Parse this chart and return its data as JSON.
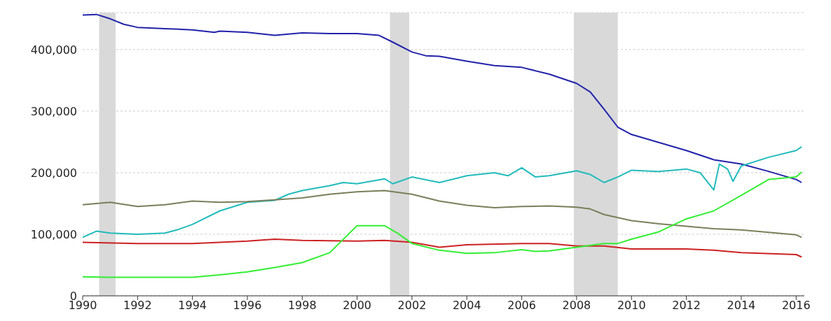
{
  "chart_data": {
    "type": "line",
    "grid": "y",
    "xlim": [
      1990,
      2016.3
    ],
    "xticks": [
      1990,
      1992,
      1994,
      1996,
      1998,
      2000,
      2002,
      2004,
      2006,
      2008,
      2010,
      2012,
      2014,
      2016
    ],
    "ylim": [
      0,
      460000
    ],
    "yticks": [
      0,
      {
        "value": 100000,
        "label": "100,000"
      },
      {
        "value": 200000,
        "label": "200,000"
      },
      {
        "value": 300000,
        "label": "300,000"
      },
      {
        "value": 400000,
        "label": "400,000"
      }
    ],
    "bands": [
      {
        "axis": "x",
        "from": 1990.6,
        "to": 1991.2,
        "color": "#d9d9d9"
      },
      {
        "axis": "x",
        "from": 2001.2,
        "to": 2001.9,
        "color": "#d9d9d9"
      },
      {
        "axis": "x",
        "from": 2007.9,
        "to": 2009.5,
        "color": "#d9d9d9"
      }
    ],
    "series": [
      {
        "color": "#2222aa",
        "x": [
          1990,
          1990.5,
          1991,
          1991.5,
          1992,
          1993,
          1994,
          1994.8,
          1995,
          1996,
          1997,
          1998,
          1999,
          2000,
          2000.8,
          2001.3,
          2002,
          2002.5,
          2003,
          2004,
          2005,
          2006,
          2007,
          2008,
          2008.5,
          2009,
          2009.5,
          2010,
          2011,
          2012,
          2013,
          2014,
          2015,
          2016,
          2016.2
        ],
        "values": [
          456000,
          457000,
          450000,
          441000,
          436000,
          434000,
          432000,
          428000,
          430000,
          428000,
          423000,
          427000,
          426000,
          426000,
          423000,
          412000,
          396000,
          390000,
          389000,
          381000,
          374000,
          371000,
          360000,
          345000,
          331000,
          303000,
          274000,
          262000,
          249000,
          236000,
          221000,
          214000,
          202000,
          189000,
          184000
        ]
      },
      {
        "color": "#22bbbb",
        "x": [
          1990,
          1990.5,
          1991,
          1992,
          1993,
          1993.5,
          1994,
          1995,
          1996,
          1997,
          1997.5,
          1998,
          1999,
          1999.5,
          2000,
          2001,
          2001.3,
          2002,
          2003,
          2004,
          2005,
          2005.5,
          2006,
          2006.5,
          2007,
          2008,
          2008.5,
          2009,
          2009.5,
          2010,
          2011,
          2012,
          2012.5,
          2013,
          2013.2,
          2013.5,
          2013.7,
          2014,
          2015,
          2016,
          2016.2
        ],
        "values": [
          95000,
          105000,
          102000,
          100000,
          102000,
          108000,
          116000,
          138000,
          152000,
          155000,
          165000,
          171000,
          179000,
          184000,
          182000,
          190000,
          182000,
          193000,
          184000,
          195000,
          200000,
          195000,
          208000,
          193000,
          195000,
          203000,
          197000,
          184000,
          193000,
          204000,
          202000,
          206000,
          200000,
          172000,
          214000,
          206000,
          186000,
          211000,
          225000,
          236000,
          242000
        ]
      },
      {
        "color": "#7a7f5a",
        "x": [
          1990,
          1991,
          1992,
          1993,
          1994,
          1995,
          1996,
          1997,
          1998,
          1999,
          2000,
          2001,
          2002,
          2003,
          2004,
          2005,
          2006,
          2007,
          2008,
          2008.5,
          2009,
          2010,
          2011,
          2012,
          2013,
          2014,
          2015,
          2016,
          2016.2
        ],
        "values": [
          148000,
          152000,
          145000,
          148000,
          154000,
          152000,
          153000,
          156000,
          159000,
          165000,
          169000,
          171000,
          165000,
          154000,
          147000,
          143000,
          145000,
          146000,
          144000,
          141000,
          132000,
          122000,
          117000,
          113000,
          109000,
          107000,
          103000,
          99000,
          95000
        ]
      },
      {
        "color": "#cc2222",
        "x": [
          1990,
          1992,
          1994,
          1996,
          1997,
          1998,
          2000,
          2001,
          2002,
          2003,
          2004,
          2006,
          2007,
          2008,
          2009,
          2010,
          2012,
          2013,
          2014,
          2016,
          2016.2
        ],
        "values": [
          87000,
          85000,
          85000,
          89000,
          92000,
          90000,
          89000,
          90000,
          87000,
          79000,
          83000,
          85000,
          85000,
          81000,
          81000,
          76000,
          76000,
          74000,
          70000,
          67000,
          63000
        ]
      },
      {
        "color": "#33ee33",
        "x": [
          1990,
          1991,
          1993,
          1994,
          1995,
          1996,
          1997,
          1998,
          1999,
          2000,
          2001,
          2001.5,
          2002,
          2003,
          2004,
          2005,
          2006,
          2006.5,
          2007,
          2008,
          2009,
          2009.5,
          2010,
          2011,
          2012,
          2013,
          2014,
          2015,
          2016,
          2016.2
        ],
        "values": [
          31000,
          30000,
          30000,
          30000,
          34000,
          39000,
          46000,
          54000,
          70000,
          114000,
          114000,
          101000,
          85000,
          74000,
          69000,
          70000,
          75000,
          72000,
          73000,
          79000,
          85000,
          85000,
          92000,
          104000,
          125000,
          138000,
          163000,
          189000,
          193000,
          201000
        ]
      }
    ]
  }
}
